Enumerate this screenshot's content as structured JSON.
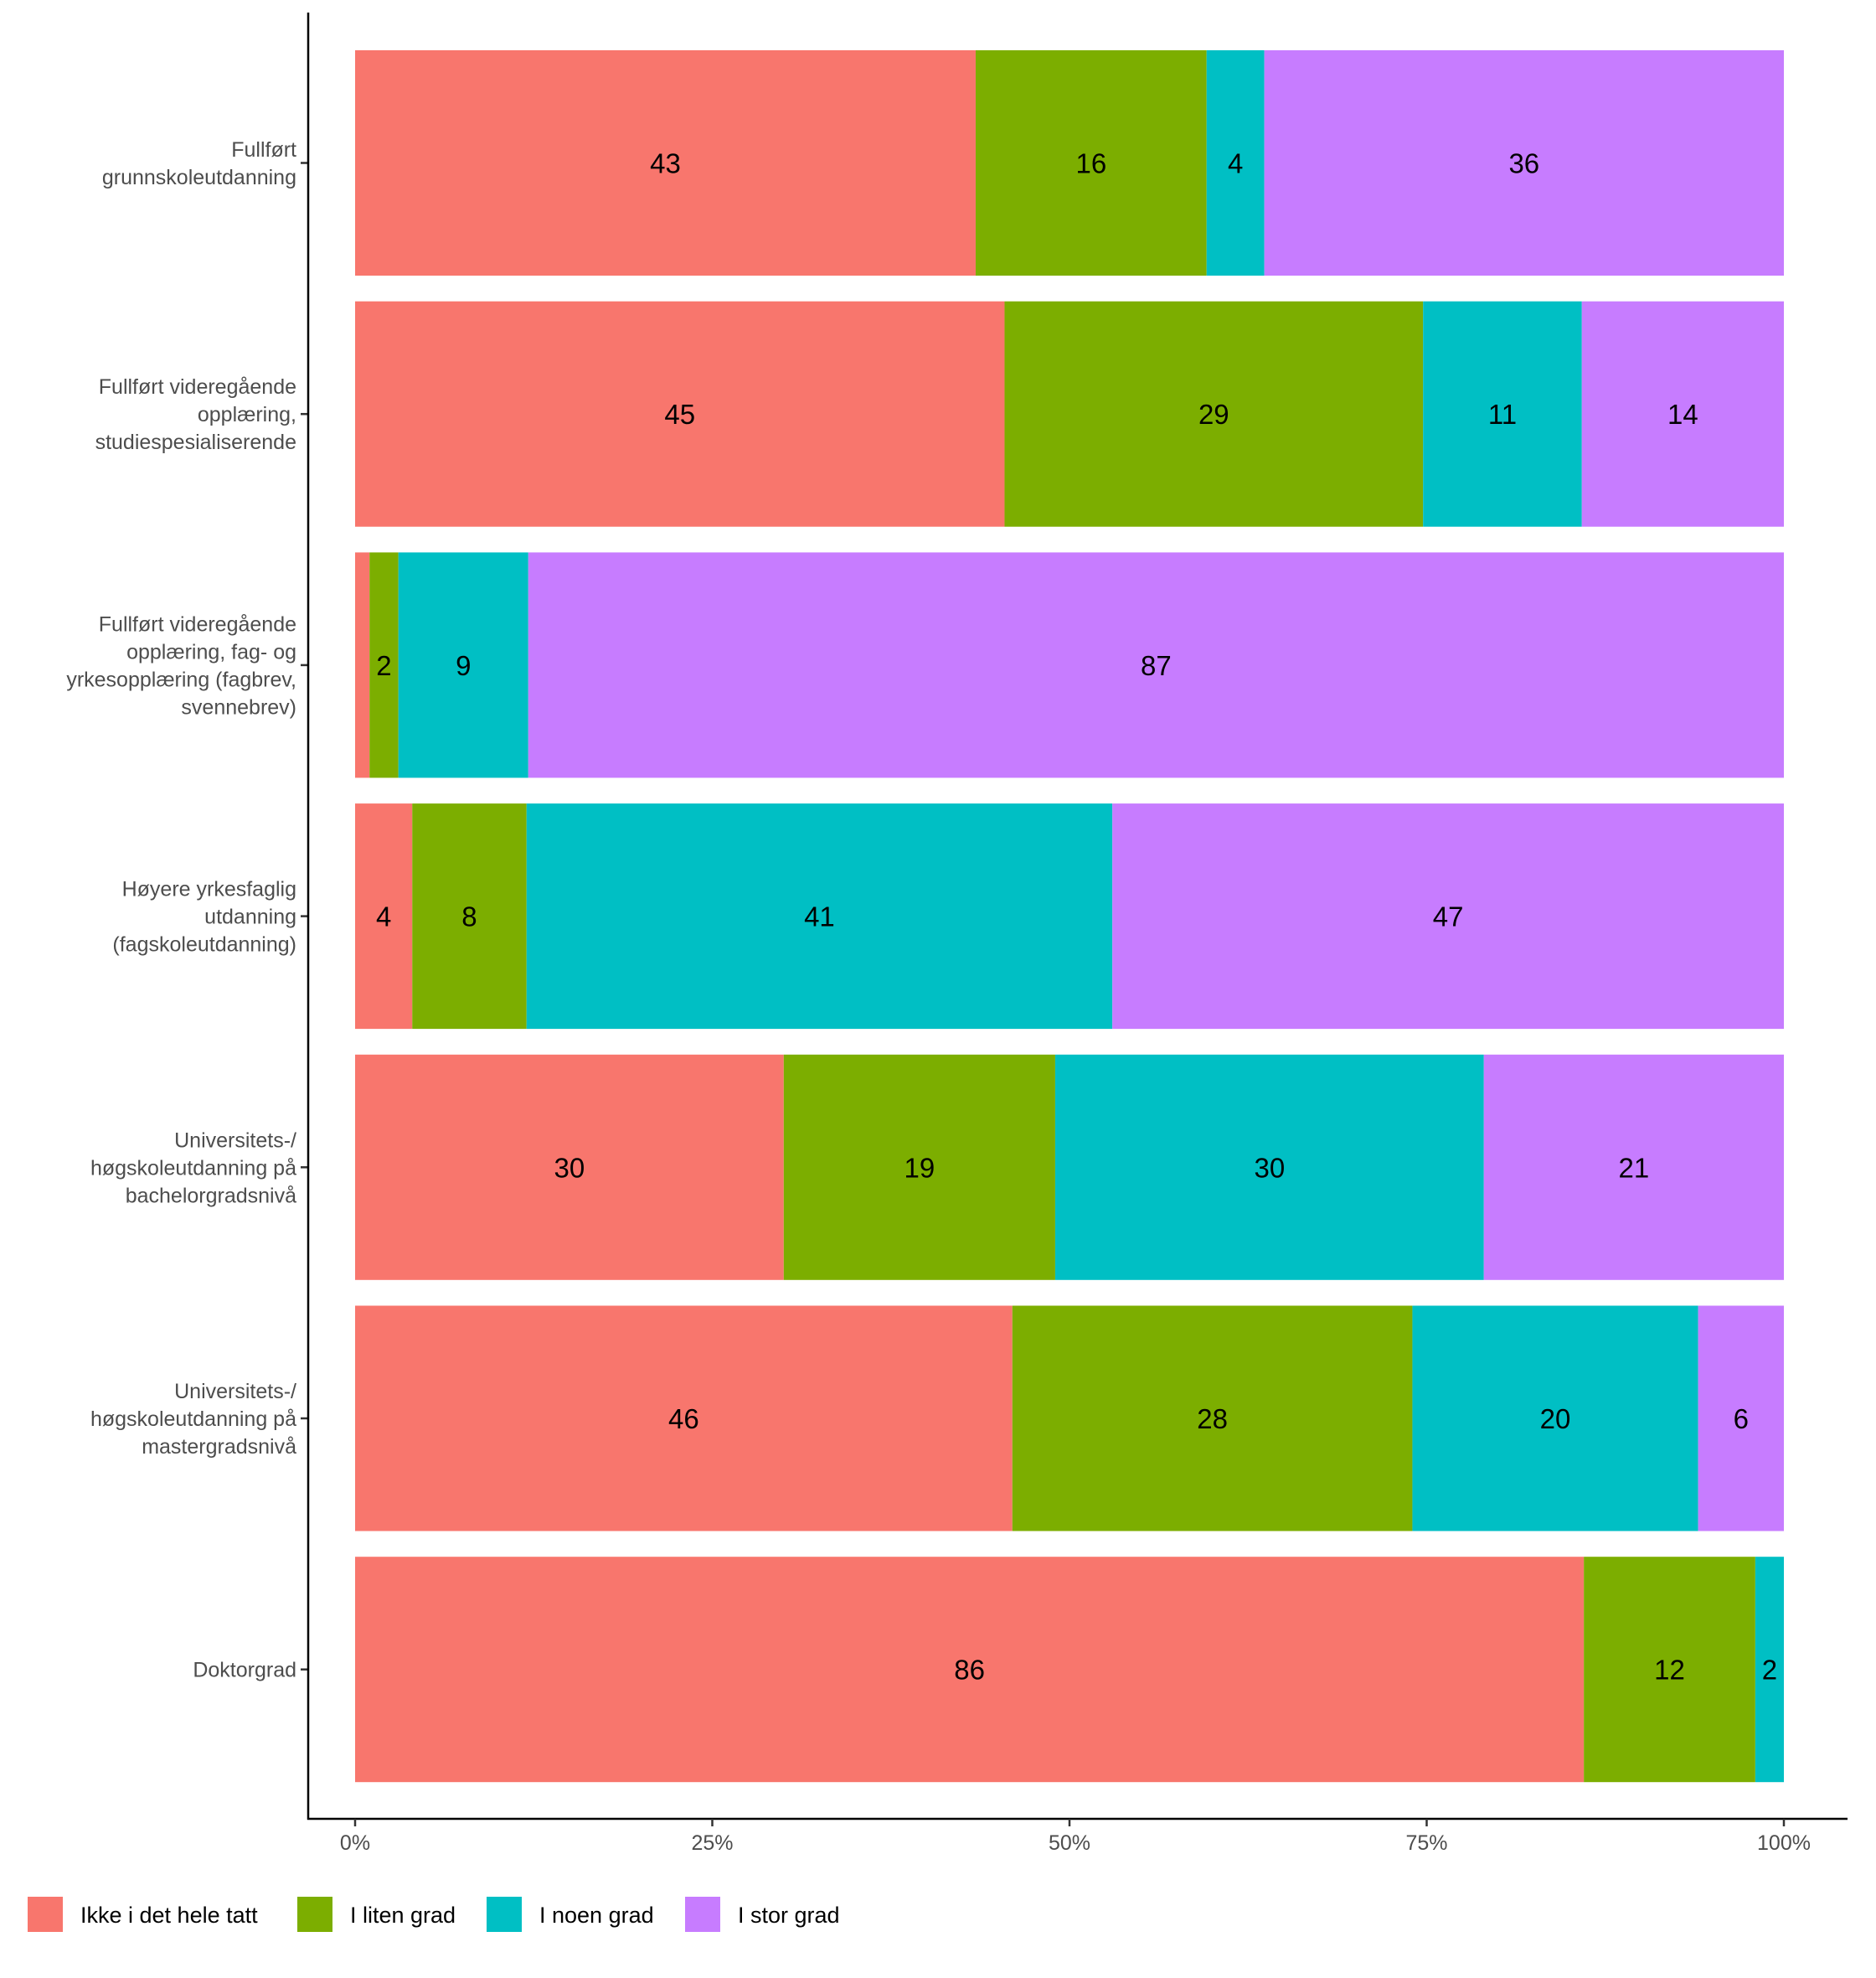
{
  "chart_data": {
    "type": "bar",
    "orientation": "horizontal",
    "stacked": "percent",
    "title": "",
    "xlabel": "",
    "ylabel": "",
    "xlim": [
      0,
      100
    ],
    "x_ticks": [
      "0%",
      "25%",
      "50%",
      "75%",
      "100%"
    ],
    "categories": [
      [
        "Fullført",
        "grunnskoleutdanning"
      ],
      [
        "Fullført videregående",
        "opplæring,",
        "studiespesialiserende"
      ],
      [
        "Fullført videregående",
        "opplæring, fag- og",
        "yrkesopplæring (fagbrev,",
        "svennebrev)"
      ],
      [
        "Høyere yrkesfaglig",
        "utdanning",
        "(fagskoleutdanning)"
      ],
      [
        "Universitets-/",
        "høgskoleutdanning på",
        "bachelorgradsnivå"
      ],
      [
        "Universitets-/",
        "høgskoleutdanning på",
        "mastergradsnivå"
      ],
      [
        "Doktorgrad"
      ]
    ],
    "series": [
      {
        "name": "Ikke i det hele tatt",
        "color": "#F8766D",
        "values": [
          43,
          45,
          1,
          4,
          30,
          46,
          86
        ],
        "labels": [
          "43",
          "45",
          "",
          "4",
          "30",
          "46",
          "86"
        ]
      },
      {
        "name": "I liten grad",
        "color": "#7CAE00",
        "values": [
          16,
          29,
          2,
          8,
          19,
          28,
          12
        ],
        "labels": [
          "16",
          "29",
          "2",
          "8",
          "19",
          "28",
          "12"
        ]
      },
      {
        "name": "I noen grad",
        "color": "#00BFC4",
        "values": [
          4,
          11,
          9,
          41,
          30,
          20,
          2
        ],
        "labels": [
          "4",
          "11",
          "9",
          "41",
          "30",
          "20",
          "2"
        ]
      },
      {
        "name": "I stor grad",
        "color": "#C77CFF",
        "values": [
          36,
          14,
          87,
          47,
          21,
          6,
          0
        ],
        "labels": [
          "36",
          "14",
          "87",
          "47",
          "21",
          "6",
          ""
        ]
      }
    ],
    "legend_position": "bottom-left",
    "grid": false
  }
}
